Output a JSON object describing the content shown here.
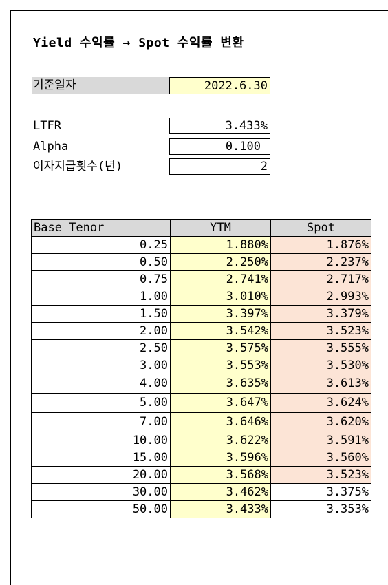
{
  "title": "Yield 수익률 → Spot 수익률 변환",
  "base_date": {
    "label": "기준일자",
    "value": "2022.6.30"
  },
  "params": [
    {
      "label": "LTFR",
      "value": "3.433%"
    },
    {
      "label": "Alpha",
      "value": "0.100"
    },
    {
      "label": "이자지급횟수(년)",
      "value": "2"
    }
  ],
  "table": {
    "headers": [
      "Base Tenor",
      "YTM",
      "Spot"
    ],
    "rows": [
      {
        "tenor": "0.25",
        "ytm": "1.880%",
        "spot": "1.876%"
      },
      {
        "tenor": "0.50",
        "ytm": "2.250%",
        "spot": "2.237%"
      },
      {
        "tenor": "0.75",
        "ytm": "2.741%",
        "spot": "2.717%"
      },
      {
        "tenor": "1.00",
        "ytm": "3.010%",
        "spot": "2.993%"
      },
      {
        "tenor": "1.50",
        "ytm": "3.397%",
        "spot": "3.379%"
      },
      {
        "tenor": "2.00",
        "ytm": "3.542%",
        "spot": "3.523%"
      },
      {
        "tenor": "2.50",
        "ytm": "3.575%",
        "spot": "3.555%"
      },
      {
        "tenor": "3.00",
        "ytm": "3.553%",
        "spot": "3.530%"
      },
      {
        "tenor": "4.00",
        "ytm": "3.635%",
        "spot": "3.613%"
      },
      {
        "tenor": "5.00",
        "ytm": "3.647%",
        "spot": "3.624%"
      },
      {
        "tenor": "7.00",
        "ytm": "3.646%",
        "spot": "3.620%"
      },
      {
        "tenor": "10.00",
        "ytm": "3.622%",
        "spot": "3.591%"
      },
      {
        "tenor": "15.00",
        "ytm": "3.596%",
        "spot": "3.560%"
      },
      {
        "tenor": "20.00",
        "ytm": "3.568%",
        "spot": "3.523%"
      },
      {
        "tenor": "30.00",
        "ytm": "3.462%",
        "spot": "3.375%"
      },
      {
        "tenor": "50.00",
        "ytm": "3.433%",
        "spot": "3.353%"
      }
    ]
  },
  "colors": {
    "input_fill": "#ffffcc",
    "spot_fill": "#fce4d6",
    "header_fill": "#d9d9d9"
  }
}
